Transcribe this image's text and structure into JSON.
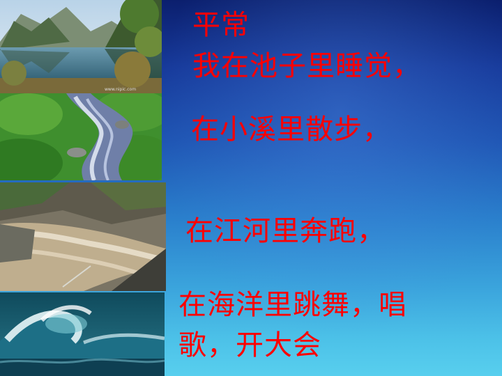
{
  "slide": {
    "lines": [
      "平常",
      "我在池子里睡觉，",
      "在小溪里散步，",
      "在江河里奔跑，",
      "在海洋里跳舞，唱",
      "歌，开大会"
    ],
    "text_color": "#ff0000",
    "background_colors": [
      "#0b1f6e",
      "#2a7fcc",
      "#58cfee"
    ]
  },
  "photos": [
    {
      "subject": "mountain-lake-image",
      "caption": "www.nipic.com"
    },
    {
      "subject": "stream-image",
      "caption": ""
    },
    {
      "subject": "river-rapids-image",
      "caption": ""
    },
    {
      "subject": "ocean-wave-image",
      "caption": ""
    }
  ]
}
